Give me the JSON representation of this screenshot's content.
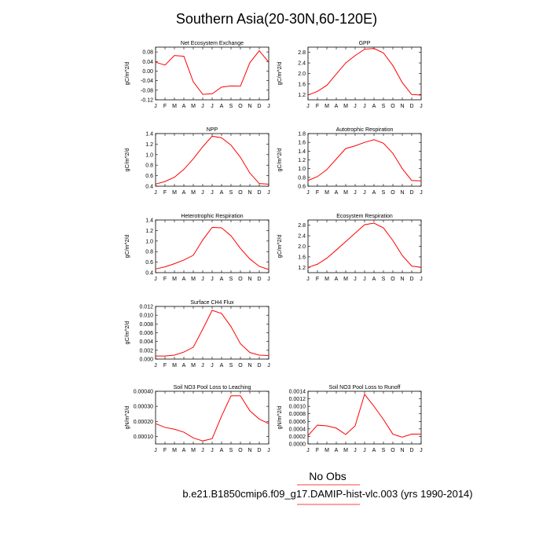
{
  "figure": {
    "title": "Southern Asia(20-30N,60-120E)",
    "legend": {
      "label": "No Obs",
      "color": "#ff0000"
    },
    "caption": "b.e21.B1850cmip6.f09_g17.DAMIP-hist-vlc.003 (yrs 1990-2014)",
    "line_color": "#ff0000"
  },
  "chart_data": [
    {
      "type": "line",
      "title": "Net Ecosystem Exchange",
      "ylabel": "gC/m^2/d",
      "categories": [
        "J",
        "F",
        "M",
        "A",
        "M",
        "J",
        "J",
        "A",
        "S",
        "O",
        "N",
        "D",
        "J"
      ],
      "values": [
        0.037,
        0.025,
        0.065,
        0.062,
        -0.045,
        -0.097,
        -0.095,
        -0.067,
        -0.062,
        -0.063,
        0.035,
        0.085,
        0.037
      ],
      "ylim": [
        -0.12,
        0.1
      ],
      "yticks": [
        "0.08",
        "0.04",
        "0.00",
        "-0.04",
        "-0.08",
        "-0.12"
      ]
    },
    {
      "type": "line",
      "title": "GPP",
      "ylabel": "gC/m^2/d",
      "categories": [
        "J",
        "F",
        "M",
        "A",
        "M",
        "J",
        "J",
        "A",
        "S",
        "O",
        "N",
        "D",
        "J"
      ],
      "values": [
        1.18,
        1.32,
        1.55,
        1.98,
        2.4,
        2.68,
        2.92,
        2.95,
        2.78,
        2.3,
        1.65,
        1.2,
        1.18
      ],
      "ylim": [
        1.0,
        3.0
      ],
      "yticks": [
        "2.8",
        "2.4",
        "2.0",
        "1.6",
        "1.2"
      ]
    },
    {
      "type": "line",
      "title": "NPP",
      "ylabel": "gC/m^2/d",
      "categories": [
        "J",
        "F",
        "M",
        "A",
        "M",
        "J",
        "J",
        "A",
        "S",
        "O",
        "N",
        "D",
        "J"
      ],
      "values": [
        0.44,
        0.49,
        0.57,
        0.72,
        0.92,
        1.15,
        1.35,
        1.32,
        1.18,
        0.95,
        0.65,
        0.45,
        0.44
      ],
      "ylim": [
        0.4,
        1.4
      ],
      "yticks": [
        "1.4",
        "1.2",
        "1.0",
        "0.8",
        "0.6",
        "0.4"
      ]
    },
    {
      "type": "line",
      "title": "Autotrophic Respiration",
      "ylabel": "gC/m^2/d",
      "categories": [
        "J",
        "F",
        "M",
        "A",
        "M",
        "J",
        "J",
        "A",
        "S",
        "O",
        "N",
        "D",
        "J"
      ],
      "values": [
        0.73,
        0.82,
        0.98,
        1.22,
        1.46,
        1.52,
        1.6,
        1.66,
        1.58,
        1.35,
        1.0,
        0.73,
        0.72
      ],
      "ylim": [
        0.6,
        1.8
      ],
      "yticks": [
        "1.8",
        "1.6",
        "1.4",
        "1.2",
        "1.0",
        "0.8",
        "0.6"
      ]
    },
    {
      "type": "line",
      "title": "Heterotrophic Respiration",
      "ylabel": "gC/m^2/d",
      "categories": [
        "J",
        "F",
        "M",
        "A",
        "M",
        "J",
        "J",
        "A",
        "S",
        "O",
        "N",
        "D",
        "J"
      ],
      "values": [
        0.47,
        0.51,
        0.57,
        0.64,
        0.73,
        1.02,
        1.26,
        1.25,
        1.1,
        0.86,
        0.66,
        0.52,
        0.46
      ],
      "ylim": [
        0.4,
        1.4
      ],
      "yticks": [
        "1.4",
        "1.2",
        "1.0",
        "0.8",
        "0.6",
        "0.4"
      ]
    },
    {
      "type": "line",
      "title": "Ecosystem Respiration",
      "ylabel": "gC/m^2/d",
      "categories": [
        "J",
        "F",
        "M",
        "A",
        "M",
        "J",
        "J",
        "A",
        "S",
        "O",
        "N",
        "D",
        "J"
      ],
      "values": [
        1.2,
        1.32,
        1.55,
        1.86,
        2.18,
        2.5,
        2.82,
        2.88,
        2.7,
        2.22,
        1.65,
        1.25,
        1.2
      ],
      "ylim": [
        1.0,
        3.0
      ],
      "yticks": [
        "2.8",
        "2.4",
        "2.0",
        "1.6",
        "1.2"
      ]
    },
    {
      "type": "line",
      "title": "Surface CH4 Flux",
      "ylabel": "gC/m^2/d",
      "categories": [
        "J",
        "F",
        "M",
        "A",
        "M",
        "J",
        "J",
        "A",
        "S",
        "O",
        "N",
        "D",
        "J"
      ],
      "values": [
        0.0007,
        0.0007,
        0.0009,
        0.0016,
        0.0027,
        0.0068,
        0.0111,
        0.0104,
        0.0074,
        0.0035,
        0.0015,
        0.0009,
        0.0008
      ],
      "ylim": [
        0.0,
        0.012
      ],
      "yticks": [
        "0.012",
        "0.010",
        "0.008",
        "0.006",
        "0.004",
        "0.002",
        "0.000"
      ]
    },
    {
      "type": "line",
      "title": "Soil NO3 Pool Loss to Leaching",
      "ylabel": "gN/m^2/d",
      "categories": [
        "J",
        "F",
        "M",
        "A",
        "M",
        "J",
        "J",
        "A",
        "S",
        "O",
        "N",
        "D",
        "J"
      ],
      "values": [
        0.000185,
        0.00016,
        0.000148,
        0.000128,
        9e-05,
        7e-05,
        8.5e-05,
        0.000235,
        0.00037,
        0.00037,
        0.00027,
        0.000215,
        0.000185
      ],
      "ylim": [
        5e-05,
        0.0004
      ],
      "yticks": [
        "0.00040",
        "0.00030",
        "0.00020",
        "0.00010"
      ]
    },
    {
      "type": "line",
      "title": "Soil NO3 Pool Loss to Runoff",
      "ylabel": "gN/m^2/d",
      "categories": [
        "J",
        "F",
        "M",
        "A",
        "M",
        "J",
        "J",
        "A",
        "S",
        "O",
        "N",
        "D",
        "J"
      ],
      "values": [
        0.00022,
        0.0005,
        0.00048,
        0.00042,
        0.00025,
        0.00048,
        0.00132,
        0.001,
        0.00065,
        0.00026,
        0.00018,
        0.00026,
        0.00026
      ],
      "ylim": [
        0.0,
        0.0014
      ],
      "yticks": [
        "0.0014",
        "0.0012",
        "0.0010",
        "0.0008",
        "0.0006",
        "0.0004",
        "0.0002",
        "0.0000"
      ]
    }
  ]
}
